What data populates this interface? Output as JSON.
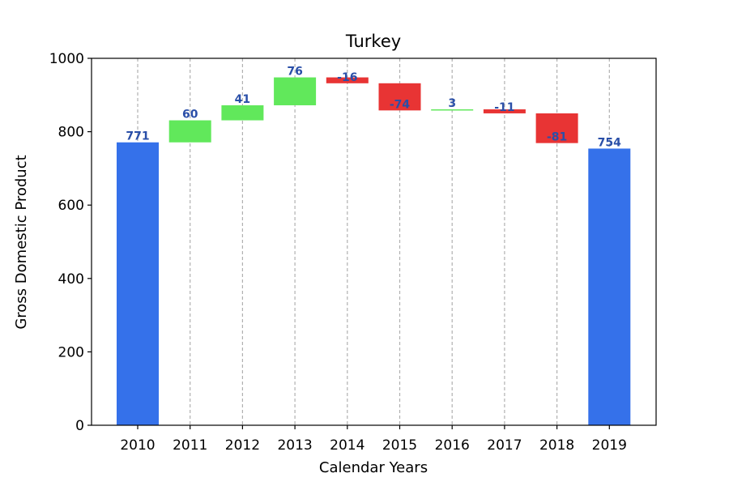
{
  "chart_data": {
    "type": "bar",
    "subtype": "waterfall",
    "title": "Turkey",
    "xlabel": "Calendar Years",
    "ylabel": "Gross Domestic Product",
    "ylim": [
      0,
      1000
    ],
    "yticks": [
      0,
      200,
      400,
      600,
      800,
      1000
    ],
    "grid": "x-dashed",
    "legend": "none",
    "categories": [
      "2010",
      "2011",
      "2012",
      "2013",
      "2014",
      "2015",
      "2016",
      "2017",
      "2018",
      "2019"
    ],
    "bars": [
      {
        "category": "2010",
        "kind": "total",
        "start": 0,
        "end": 771,
        "label": "771"
      },
      {
        "category": "2011",
        "kind": "increase",
        "start": 771,
        "end": 831,
        "label": "60"
      },
      {
        "category": "2012",
        "kind": "increase",
        "start": 831,
        "end": 872,
        "label": "41"
      },
      {
        "category": "2013",
        "kind": "increase",
        "start": 872,
        "end": 948,
        "label": "76"
      },
      {
        "category": "2014",
        "kind": "decrease",
        "start": 948,
        "end": 932,
        "label": "-16"
      },
      {
        "category": "2015",
        "kind": "decrease",
        "start": 932,
        "end": 858,
        "label": "-74"
      },
      {
        "category": "2016",
        "kind": "increase",
        "start": 858,
        "end": 861,
        "label": "3"
      },
      {
        "category": "2017",
        "kind": "decrease",
        "start": 861,
        "end": 850,
        "label": "-11"
      },
      {
        "category": "2018",
        "kind": "decrease",
        "start": 850,
        "end": 769,
        "label": "-81"
      },
      {
        "category": "2019",
        "kind": "total",
        "start": 0,
        "end": 754,
        "label": "754"
      }
    ],
    "colors": {
      "total": "#3571ea",
      "increase": "#61e85b",
      "decrease": "#e83434",
      "label": "#2a4fa8",
      "grid": "#b0b0b0"
    }
  }
}
